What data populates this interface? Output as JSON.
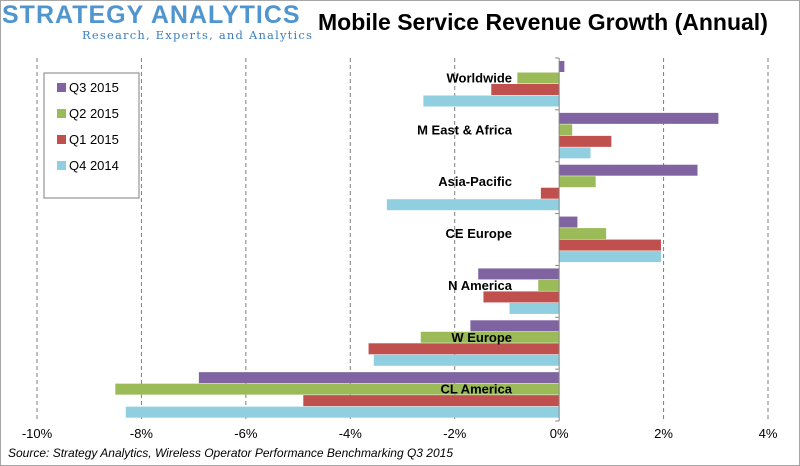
{
  "brand": {
    "name": "STRATEGY ANALYTICS",
    "tagline": "Research, Experts, and Analytics"
  },
  "source_prefix": "Source: Strategy Analytics, ",
  "source_italic": "Wireless",
  "source_suffix": " Operator Performance Benchmarking Q3 2015",
  "chart_data": {
    "type": "bar",
    "orientation": "horizontal",
    "title": "Mobile Service Revenue Growth (Annual)",
    "xlabel": "",
    "ylabel": "",
    "xlim": [
      -10,
      4
    ],
    "x_ticks": [
      -10,
      -8,
      -6,
      -4,
      -2,
      0,
      2,
      4
    ],
    "x_tick_labels": [
      "-10%",
      "-8%",
      "-6%",
      "-4%",
      "-2%",
      "0%",
      "2%",
      "4%"
    ],
    "grid": "vertical dashed",
    "legend_position": "top-left",
    "categories": [
      "Worldwide",
      "M East & Africa",
      "Asia-Pacific",
      "CE Europe",
      "N America",
      "W Europe",
      "CL America"
    ],
    "series": [
      {
        "name": "Q3 2015",
        "color": "#8064a2",
        "values": [
          0.1,
          3.05,
          2.65,
          0.35,
          -1.55,
          -1.7,
          -6.9
        ]
      },
      {
        "name": "Q2 2015",
        "color": "#9bbb59",
        "values": [
          -0.8,
          0.25,
          0.7,
          0.9,
          -0.4,
          -2.65,
          -8.5
        ]
      },
      {
        "name": "Q1 2015",
        "color": "#c0504d",
        "values": [
          -1.3,
          1.0,
          -0.35,
          1.95,
          -1.45,
          -3.65,
          -4.9
        ]
      },
      {
        "name": "Q4 2014",
        "color": "#8fcfe0",
        "values": [
          -2.6,
          0.6,
          -3.3,
          1.95,
          -0.95,
          -3.55,
          -8.3
        ]
      }
    ]
  }
}
